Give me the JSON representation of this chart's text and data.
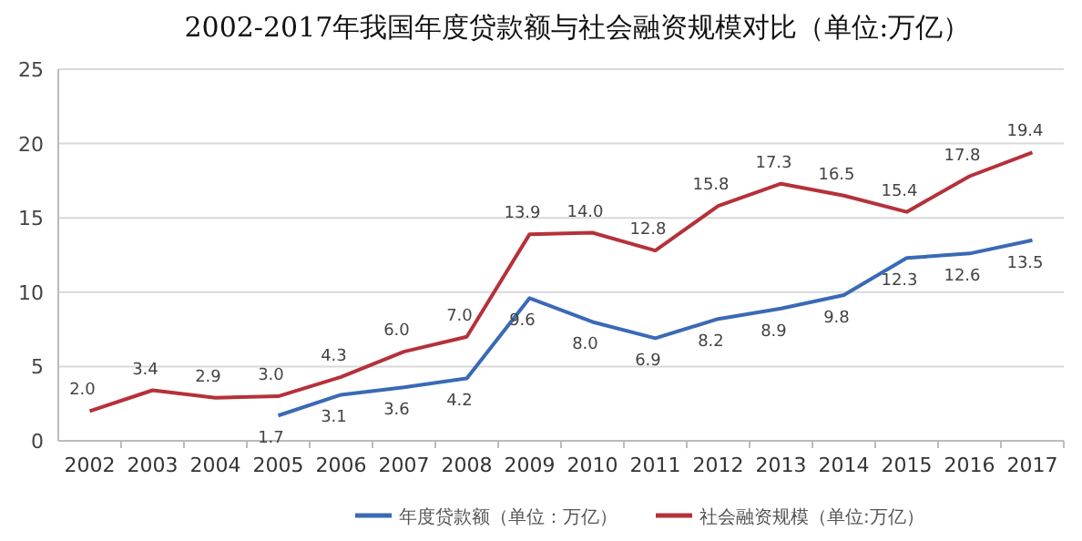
{
  "chart_data": {
    "type": "line",
    "title": "2002-2017年我国年度贷款额与社会融资规模对比（单位:万亿）",
    "categories": [
      "2002",
      "2003",
      "2004",
      "2005",
      "2006",
      "2007",
      "2008",
      "2009",
      "2010",
      "2011",
      "2012",
      "2013",
      "2014",
      "2015",
      "2016",
      "2017"
    ],
    "series": [
      {
        "name": "年度贷款额（单位：万亿）",
        "color": "#3a6ab5",
        "values": [
          null,
          null,
          null,
          1.7,
          3.1,
          3.6,
          4.2,
          9.6,
          8.0,
          6.9,
          8.2,
          8.9,
          9.8,
          12.3,
          12.6,
          13.5
        ],
        "value_labels": [
          null,
          null,
          null,
          "1.7",
          "3.1",
          "3.6",
          "4.2",
          "9.6",
          "8.0",
          "6.9",
          "8.2",
          "8.9",
          "9.8",
          "12.3",
          "12.6",
          "13.5"
        ]
      },
      {
        "name": "社会融资规模（单位:万亿）",
        "color": "#b5313a",
        "values": [
          2.0,
          3.4,
          2.9,
          3.0,
          4.3,
          6.0,
          7.0,
          13.9,
          14.0,
          12.8,
          15.8,
          17.3,
          16.5,
          15.4,
          17.8,
          19.4
        ],
        "value_labels": [
          "2.0",
          "3.4",
          "2.9",
          "3.0",
          "4.3",
          "6.0",
          "7.0",
          "13.9",
          "14.0",
          "12.8",
          "15.8",
          "17.3",
          "16.5",
          "15.4",
          "17.8",
          "19.4"
        ]
      }
    ],
    "ylim": [
      0,
      25
    ],
    "yticks": [
      0,
      5,
      10,
      15,
      20,
      25
    ],
    "grid": "y",
    "legend": "bottom",
    "marker": "none",
    "line_style": "solid"
  }
}
